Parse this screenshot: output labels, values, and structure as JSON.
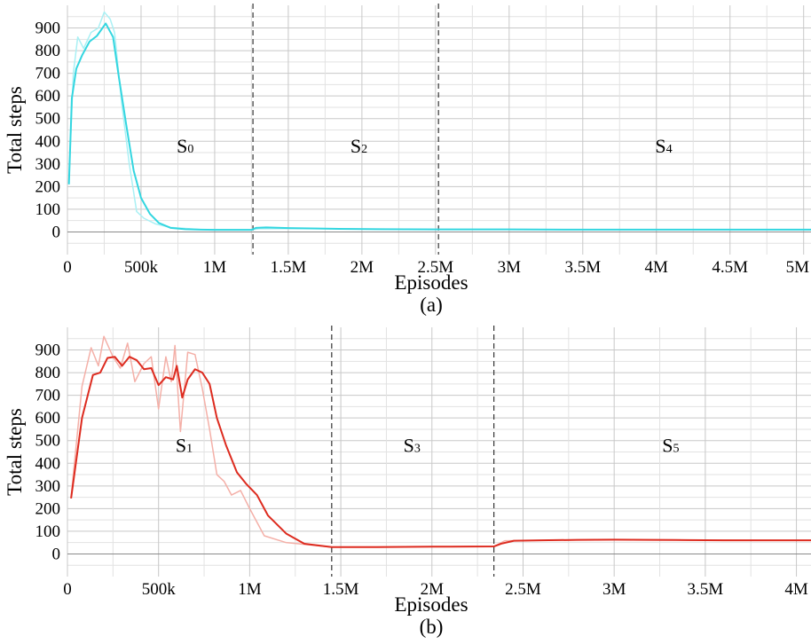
{
  "chart_data": [
    {
      "type": "line",
      "panel_label": "(a)",
      "xlabel": "Episodes",
      "ylabel": "Total steps",
      "xlim": [
        0,
        5050000
      ],
      "ylim": [
        -100,
        1000
      ],
      "yticks": [
        0,
        100,
        200,
        300,
        400,
        500,
        600,
        700,
        800,
        900
      ],
      "xticks": [
        {
          "value": 0,
          "label": "0"
        },
        {
          "value": 500000,
          "label": "500k"
        },
        {
          "value": 1000000,
          "label": "1M"
        },
        {
          "value": 1500000,
          "label": "1.5M"
        },
        {
          "value": 2000000,
          "label": "2M"
        },
        {
          "value": 2500000,
          "label": "2.5M"
        },
        {
          "value": 3000000,
          "label": "3M"
        },
        {
          "value": 3500000,
          "label": "3.5M"
        },
        {
          "value": 4000000,
          "label": "4M"
        },
        {
          "value": 4500000,
          "label": "4.5M"
        },
        {
          "value": 5000000,
          "label": "5M"
        }
      ],
      "grid": true,
      "stage_boundaries": [
        1260000,
        2520000
      ],
      "stages": [
        {
          "main": "S",
          "sub": "0",
          "x": 800000,
          "y": 350
        },
        {
          "main": "S",
          "sub": "2",
          "x": 1980000,
          "y": 350
        },
        {
          "main": "S",
          "sub": "4",
          "x": 4050000,
          "y": 350
        }
      ],
      "colors": {
        "main": "#33d6e0",
        "raw": "#aaf0f4"
      },
      "series_smoothed": {
        "x": [
          10000,
          30000,
          60000,
          100000,
          150000,
          200000,
          260000,
          310000,
          350000,
          400000,
          450000,
          500000,
          560000,
          620000,
          700000,
          800000,
          900000,
          1000000,
          1100000,
          1250000,
          1280000,
          1350000,
          1500000,
          1800000,
          2100000,
          2500000,
          3000000,
          3500000,
          4000000,
          4500000,
          5050000
        ],
        "y": [
          210,
          590,
          720,
          780,
          840,
          865,
          920,
          860,
          680,
          470,
          270,
          150,
          80,
          40,
          18,
          12,
          10,
          9,
          9,
          9,
          18,
          20,
          17,
          14,
          12,
          11,
          11,
          10,
          10,
          10,
          10
        ]
      },
      "series_raw": {
        "x": [
          10000,
          40000,
          70000,
          110000,
          160000,
          210000,
          250000,
          290000,
          320000,
          370000,
          420000,
          470000,
          520000,
          600000,
          700000,
          900000,
          1250000,
          1300000,
          1600000,
          2500000,
          5050000
        ],
        "y": [
          230,
          700,
          860,
          810,
          880,
          900,
          970,
          940,
          880,
          560,
          300,
          90,
          60,
          35,
          20,
          11,
          9,
          14,
          15,
          11,
          10
        ]
      }
    },
    {
      "type": "line",
      "panel_label": "(b)",
      "xlabel": "Episodes",
      "ylabel": "Total steps",
      "xlim": [
        0,
        4080000
      ],
      "ylim": [
        -100,
        1000
      ],
      "yticks": [
        0,
        100,
        200,
        300,
        400,
        500,
        600,
        700,
        800,
        900
      ],
      "xticks": [
        {
          "value": 0,
          "label": "0"
        },
        {
          "value": 500000,
          "label": "500k"
        },
        {
          "value": 1000000,
          "label": "1M"
        },
        {
          "value": 1500000,
          "label": "1.5M"
        },
        {
          "value": 2000000,
          "label": "2M"
        },
        {
          "value": 2500000,
          "label": "2.5M"
        },
        {
          "value": 3000000,
          "label": "3M"
        },
        {
          "value": 3500000,
          "label": "3.5M"
        },
        {
          "value": 4000000,
          "label": "4M"
        }
      ],
      "grid": true,
      "stage_boundaries": [
        1450000,
        2340000
      ],
      "stages": [
        {
          "main": "S",
          "sub": "1",
          "x": 640000,
          "y": 450
        },
        {
          "main": "S",
          "sub": "3",
          "x": 1890000,
          "y": 450
        },
        {
          "main": "S",
          "sub": "5",
          "x": 3310000,
          "y": 450
        }
      ],
      "colors": {
        "main": "#dd2b1f",
        "raw": "#f4b0a8"
      },
      "series_smoothed": {
        "x": [
          20000,
          80000,
          140000,
          180000,
          220000,
          260000,
          300000,
          340000,
          380000,
          420000,
          460000,
          500000,
          540000,
          580000,
          600000,
          630000,
          660000,
          700000,
          740000,
          780000,
          820000,
          870000,
          930000,
          980000,
          1040000,
          1100000,
          1200000,
          1300000,
          1450000,
          1700000,
          2000000,
          2340000,
          2380000,
          2450000,
          2600000,
          2800000,
          3000000,
          3200000,
          3400000,
          3600000,
          3800000,
          4080000
        ],
        "y": [
          245,
          600,
          790,
          800,
          865,
          870,
          830,
          870,
          855,
          815,
          820,
          745,
          780,
          770,
          830,
          690,
          770,
          815,
          800,
          750,
          600,
          480,
          360,
          310,
          260,
          170,
          90,
          45,
          30,
          30,
          32,
          33,
          45,
          58,
          60,
          62,
          63,
          62,
          61,
          60,
          60,
          60
        ]
      },
      "series_raw": {
        "x": [
          20000,
          80000,
          130000,
          170000,
          200000,
          250000,
          290000,
          330000,
          370000,
          420000,
          460000,
          500000,
          540000,
          570000,
          590000,
          620000,
          660000,
          700000,
          740000,
          780000,
          820000,
          860000,
          900000,
          950000,
          1000000,
          1080000,
          1200000,
          1450000,
          2340000,
          2400000,
          2600000,
          3000000,
          3500000,
          4080000
        ],
        "y": [
          250,
          740,
          910,
          830,
          960,
          870,
          820,
          930,
          760,
          840,
          870,
          640,
          870,
          760,
          920,
          540,
          890,
          880,
          730,
          550,
          350,
          320,
          260,
          280,
          200,
          80,
          50,
          30,
          33,
          58,
          60,
          63,
          61,
          60
        ]
      }
    }
  ]
}
